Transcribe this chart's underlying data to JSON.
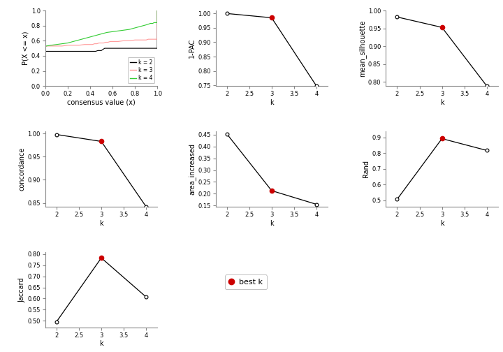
{
  "ecdf": {
    "k2": {
      "x": [
        0.0,
        0.0,
        0.01,
        0.05,
        0.1,
        0.15,
        0.2,
        0.25,
        0.3,
        0.35,
        0.4,
        0.45,
        0.47,
        0.48,
        0.49,
        0.5,
        0.51,
        0.52,
        0.53,
        0.55,
        0.6,
        0.65,
        0.7,
        0.75,
        0.8,
        0.85,
        0.9,
        0.95,
        1.0,
        1.0
      ],
      "y": [
        0.0,
        0.45,
        0.46,
        0.46,
        0.46,
        0.46,
        0.46,
        0.46,
        0.46,
        0.46,
        0.46,
        0.46,
        0.47,
        0.47,
        0.47,
        0.47,
        0.48,
        0.49,
        0.5,
        0.5,
        0.5,
        0.5,
        0.5,
        0.5,
        0.5,
        0.5,
        0.5,
        0.5,
        0.5,
        1.0
      ],
      "color": "#000000"
    },
    "k3": {
      "x": [
        0.0,
        0.0,
        0.01,
        0.05,
        0.1,
        0.15,
        0.2,
        0.25,
        0.3,
        0.35,
        0.4,
        0.42,
        0.44,
        0.46,
        0.48,
        0.5,
        0.52,
        0.54,
        0.56,
        0.58,
        0.6,
        0.65,
        0.7,
        0.75,
        0.8,
        0.85,
        0.9,
        0.92,
        0.94,
        0.96,
        0.98,
        1.0,
        1.0
      ],
      "y": [
        0.0,
        0.52,
        0.53,
        0.53,
        0.53,
        0.53,
        0.54,
        0.54,
        0.54,
        0.55,
        0.55,
        0.55,
        0.56,
        0.56,
        0.57,
        0.57,
        0.57,
        0.58,
        0.58,
        0.59,
        0.59,
        0.59,
        0.6,
        0.6,
        0.61,
        0.61,
        0.61,
        0.62,
        0.62,
        0.62,
        0.62,
        0.62,
        1.0
      ],
      "color": "#FF9999"
    },
    "k4": {
      "x": [
        0.0,
        0.0,
        0.01,
        0.05,
        0.1,
        0.15,
        0.2,
        0.25,
        0.3,
        0.35,
        0.4,
        0.45,
        0.5,
        0.55,
        0.6,
        0.65,
        0.7,
        0.75,
        0.8,
        0.85,
        0.9,
        0.92,
        0.94,
        0.96,
        0.97,
        0.98,
        0.99,
        1.0,
        1.0
      ],
      "y": [
        0.0,
        0.52,
        0.53,
        0.54,
        0.55,
        0.56,
        0.57,
        0.59,
        0.61,
        0.63,
        0.65,
        0.67,
        0.69,
        0.71,
        0.72,
        0.73,
        0.74,
        0.75,
        0.77,
        0.79,
        0.81,
        0.82,
        0.83,
        0.83,
        0.84,
        0.84,
        0.84,
        0.84,
        1.0
      ],
      "color": "#33CC33"
    }
  },
  "ecdf_xlim": [
    0.0,
    1.0
  ],
  "ecdf_ylim": [
    0.0,
    1.0
  ],
  "ecdf_xticks": [
    0.0,
    0.2,
    0.4,
    0.6,
    0.8,
    1.0
  ],
  "ecdf_yticks": [
    0.0,
    0.2,
    0.4,
    0.6,
    0.8,
    1.0
  ],
  "metric_plots": [
    {
      "name": "1-PAC",
      "k": [
        2,
        3,
        4
      ],
      "values": [
        0.9998,
        0.985,
        0.748
      ],
      "best_k": 3,
      "ylim": [
        0.748,
        1.01
      ],
      "yticks": [
        0.75,
        0.8,
        0.85,
        0.9,
        0.95,
        1.0
      ],
      "ytick_labels": [
        "0.75",
        "0.80",
        "0.85",
        "0.90",
        "0.95",
        "1.00"
      ]
    },
    {
      "name": "mean_silhouette",
      "k": [
        2,
        3,
        4
      ],
      "values": [
        0.982,
        0.953,
        0.789
      ],
      "best_k": 3,
      "ylim": [
        0.789,
        1.0
      ],
      "yticks": [
        0.8,
        0.85,
        0.9,
        0.95,
        1.0
      ],
      "ytick_labels": [
        "0.80",
        "0.85",
        "0.90",
        "0.95",
        "1.00"
      ]
    },
    {
      "name": "concordance",
      "k": [
        2,
        3,
        4
      ],
      "values": [
        0.998,
        0.983,
        0.842
      ],
      "best_k": 3,
      "ylim": [
        0.842,
        1.005
      ],
      "yticks": [
        0.85,
        0.9,
        0.95,
        1.0
      ],
      "ytick_labels": [
        "0.85",
        "0.90",
        "0.95",
        "1.00"
      ]
    },
    {
      "name": "area_increased",
      "k": [
        2,
        3,
        4
      ],
      "values": [
        0.454,
        0.213,
        0.155
      ],
      "best_k": 3,
      "ylim": [
        0.145,
        0.465
      ],
      "yticks": [
        0.15,
        0.2,
        0.25,
        0.3,
        0.35,
        0.4,
        0.45
      ],
      "ytick_labels": [
        "0.15",
        "0.20",
        "0.25",
        "0.30",
        "0.35",
        "0.40",
        "0.45"
      ]
    },
    {
      "name": "Rand",
      "k": [
        2,
        3,
        4
      ],
      "values": [
        0.507,
        0.893,
        0.818
      ],
      "best_k": 3,
      "ylim": [
        0.46,
        0.94
      ],
      "yticks": [
        0.5,
        0.6,
        0.7,
        0.8,
        0.9
      ],
      "ytick_labels": [
        "0.5",
        "0.6",
        "0.7",
        "0.8",
        "0.9"
      ]
    },
    {
      "name": "Jaccard",
      "k": [
        2,
        3,
        4
      ],
      "values": [
        0.495,
        0.783,
        0.607
      ],
      "best_k": 3,
      "ylim": [
        0.47,
        0.81
      ],
      "yticks": [
        0.5,
        0.55,
        0.6,
        0.65,
        0.7,
        0.75,
        0.8
      ],
      "ytick_labels": [
        "0.50",
        "0.55",
        "0.60",
        "0.65",
        "0.70",
        "0.75",
        "0.80"
      ]
    }
  ],
  "legend_entries": [
    "k = 2",
    "k = 3",
    "k = 4"
  ],
  "legend_colors": [
    "#000000",
    "#FF9999",
    "#33CC33"
  ],
  "bg_color": "#FFFFFF",
  "line_color": "#000000",
  "best_k_color": "#CC0000"
}
